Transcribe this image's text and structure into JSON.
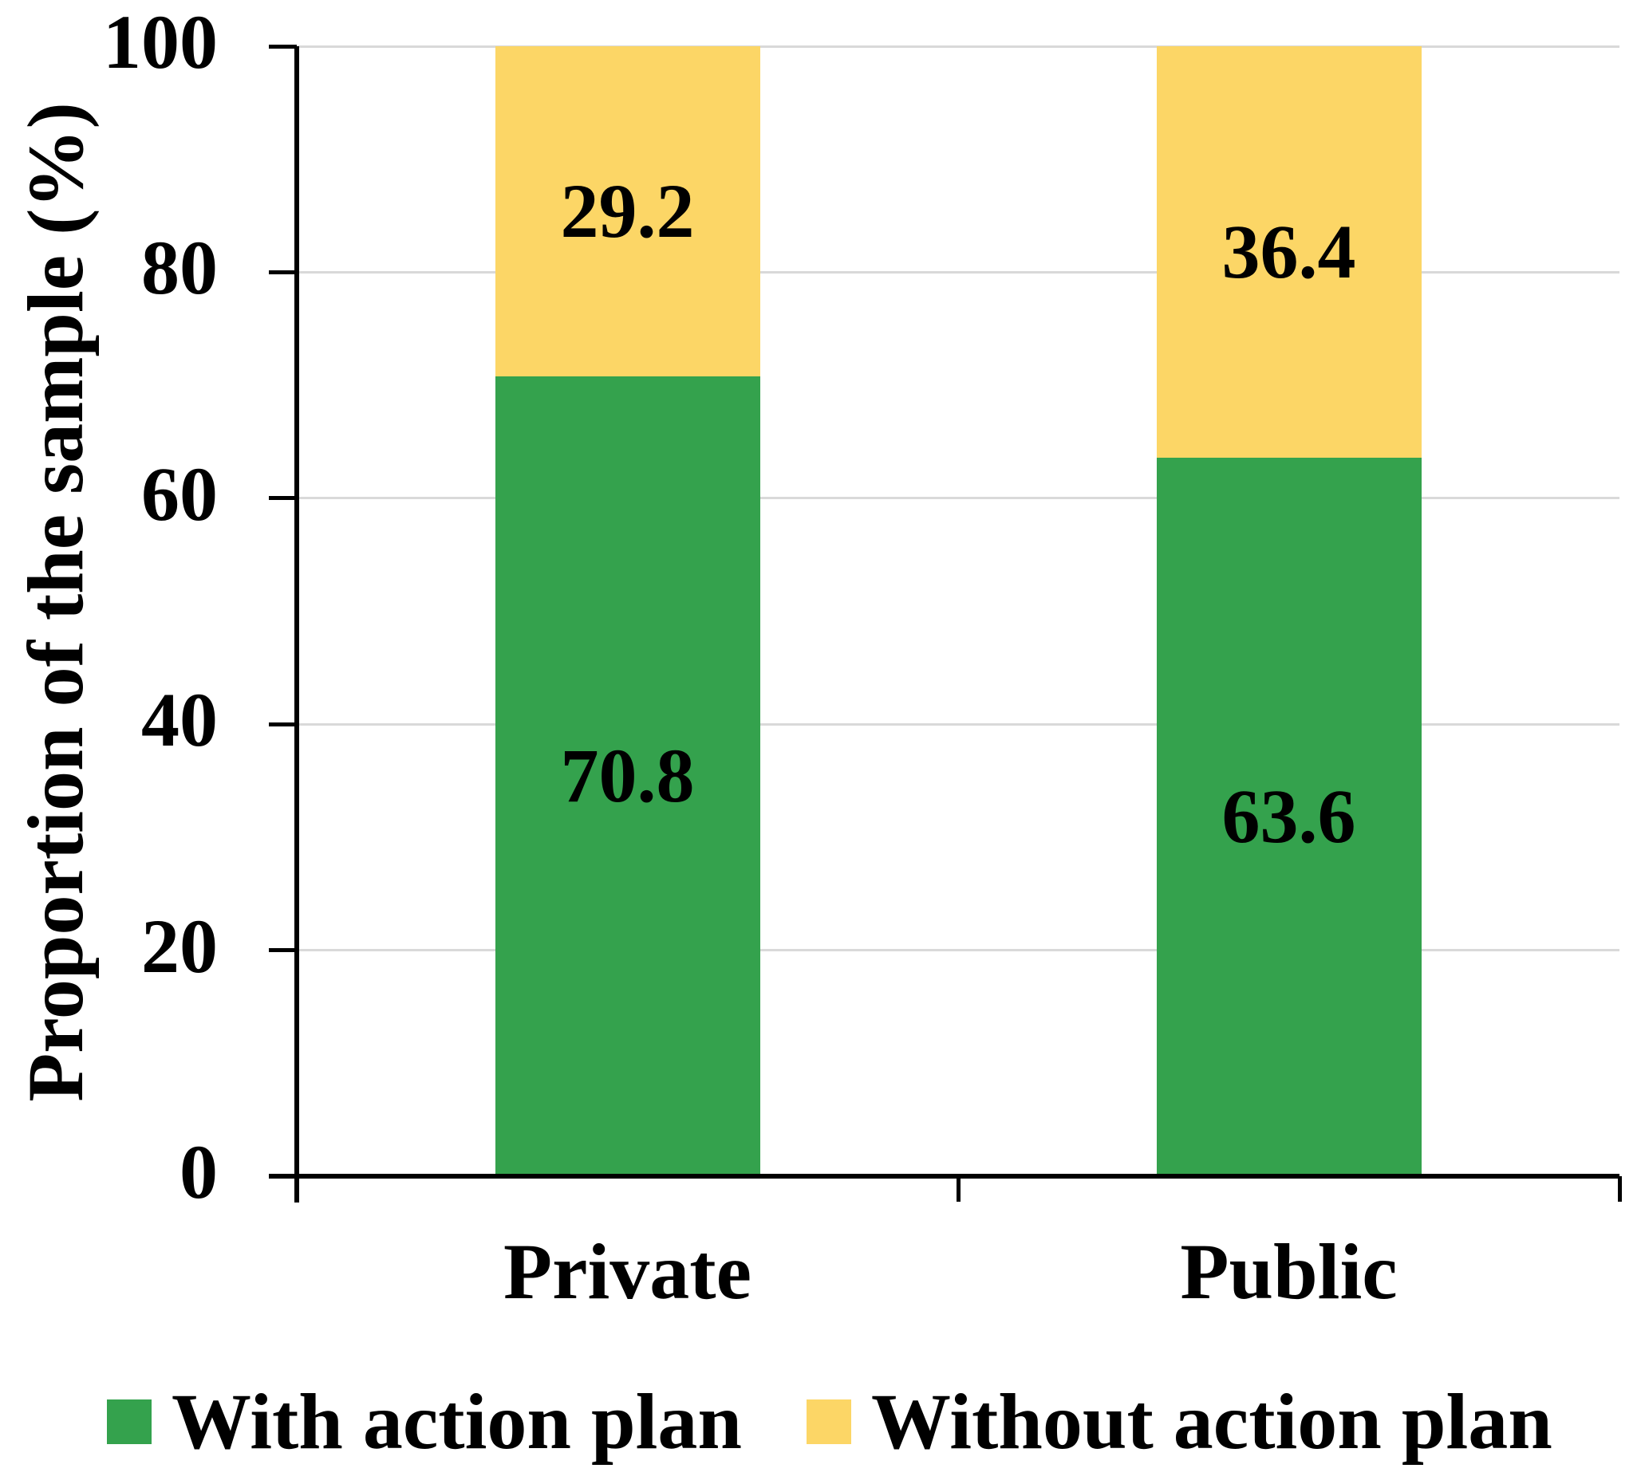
{
  "figure": {
    "background": "#ffffff"
  },
  "chart_data": {
    "type": "bar",
    "stacked": true,
    "title": "",
    "xlabel": "",
    "ylabel": "Proportion of the sample (%)",
    "categories": [
      "Private",
      "Public"
    ],
    "series": [
      {
        "name": "With action plan",
        "color": "#34A24D",
        "values": [
          70.8,
          63.6
        ]
      },
      {
        "name": "Without action plan",
        "color": "#FCD666",
        "values": [
          29.2,
          36.4
        ]
      }
    ],
    "data_labels": [
      "70.8",
      "63.6",
      "29.2",
      "36.4"
    ],
    "ylim": [
      0,
      100
    ],
    "yticks": [
      0,
      20,
      40,
      60,
      80,
      100
    ],
    "grid": "horizontal",
    "gridline_color": "#D9D9D9",
    "axis_color": "#000000",
    "text_color": "#000000",
    "legend_position": "bottom"
  }
}
